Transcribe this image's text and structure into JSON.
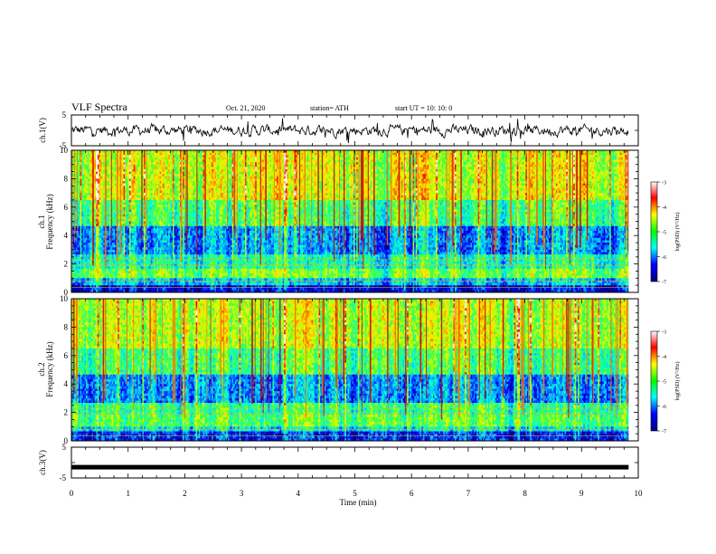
{
  "header": {
    "title": "VLF Spectra",
    "date": "Oct. 21, 2020",
    "station": "station= ATH",
    "start": "start UT =   10: 10: 0"
  },
  "colorbar": {
    "label": "log(PSD) (V²/Hz)",
    "ticks": [
      "-3",
      "-4",
      "-5",
      "-6",
      "-7"
    ],
    "stops": [
      "#ffffff",
      "#ff0000",
      "#ffff00",
      "#00ff00",
      "#00ffff",
      "#0000ff",
      "#000080"
    ]
  },
  "chart_data": [
    {
      "type": "line",
      "name": "ch1-waveform",
      "ylabel": "ch.1(V)",
      "ylim": [
        -5,
        5
      ],
      "yticks": [
        "5",
        "-5"
      ],
      "xlim": [
        0,
        10
      ],
      "note_values": "noisy waveform centered near 0 V, amplitude about ±2 V, occasional spikes to ±4 V"
    },
    {
      "type": "heatmap",
      "name": "ch1-spectrogram",
      "ylabel": "ch.1\nFrequency (kHz)",
      "ylim": [
        0,
        10
      ],
      "yticks": [
        "0",
        "2",
        "4",
        "6",
        "8",
        "10"
      ],
      "xlim": [
        0,
        10
      ],
      "bands": [
        {
          "from": 0,
          "to": 0.5,
          "level": -6.6
        },
        {
          "from": 0.5,
          "to": 1.0,
          "level": -5.8
        },
        {
          "from": 1.0,
          "to": 1.6,
          "level": -4.9
        },
        {
          "from": 1.6,
          "to": 2.6,
          "level": -5.4
        },
        {
          "from": 2.6,
          "to": 4.6,
          "level": -6.0
        },
        {
          "from": 4.6,
          "to": 6.5,
          "level": -5.1
        },
        {
          "from": 6.5,
          "to": 10.0,
          "level": -4.5
        }
      ],
      "spike_count": 70
    },
    {
      "type": "heatmap",
      "name": "ch2-spectrogram",
      "ylabel": "ch.2\nFrequency (kHz)",
      "ylim": [
        0,
        10
      ],
      "yticks": [
        "0",
        "2",
        "4",
        "6",
        "8",
        "10"
      ],
      "xlim": [
        0,
        10
      ],
      "bands": [
        {
          "from": 0,
          "to": 0.6,
          "level": -6.4
        },
        {
          "from": 0.6,
          "to": 1.0,
          "level": -5.6
        },
        {
          "from": 1.0,
          "to": 1.8,
          "level": -5.0
        },
        {
          "from": 1.8,
          "to": 2.6,
          "level": -5.2
        },
        {
          "from": 2.6,
          "to": 4.6,
          "level": -6.0
        },
        {
          "from": 4.6,
          "to": 6.5,
          "level": -5.1
        },
        {
          "from": 6.5,
          "to": 10.0,
          "level": -4.6
        }
      ],
      "spike_count": 70
    },
    {
      "type": "line",
      "name": "ch3-waveform",
      "ylabel": "ch.3(V)",
      "ylim": [
        -5,
        5
      ],
      "yticks": [
        "5",
        "-5"
      ],
      "xlim": [
        0,
        10
      ],
      "note_values": "flat thick trace near -1.5 V"
    }
  ],
  "xaxis": {
    "label": "Time (min)",
    "ticks": [
      "0",
      "1",
      "2",
      "3",
      "4",
      "5",
      "6",
      "7",
      "8",
      "9",
      "10"
    ],
    "xlim": [
      0,
      10
    ],
    "data_end": 9.83
  }
}
